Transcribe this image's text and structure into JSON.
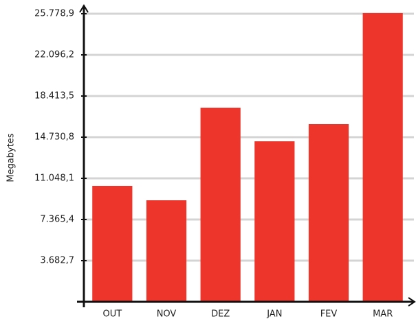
{
  "chart_data": {
    "type": "bar",
    "ylabel": "Megabytes",
    "categories": [
      "OUT",
      "NOV",
      "DEZ",
      "JAN",
      "FEV",
      "MAR"
    ],
    "values": [
      10373,
      9084,
      17370,
      14363,
      15897,
      25840
    ],
    "color": "#ee352b",
    "ylim": [
      0,
      26270
    ],
    "yticks": [
      {
        "value": 3682.7,
        "label": "3.682,7"
      },
      {
        "value": 7365.4,
        "label": "7.365,4"
      },
      {
        "value": 11048.1,
        "label": "11.048,1"
      },
      {
        "value": 14730.8,
        "label": "14.730,8"
      },
      {
        "value": 18413.5,
        "label": "18.413,5"
      },
      {
        "value": 22096.2,
        "label": "22.096,2"
      },
      {
        "value": 25778.9,
        "label": "25.778,9"
      }
    ],
    "grid": true
  }
}
